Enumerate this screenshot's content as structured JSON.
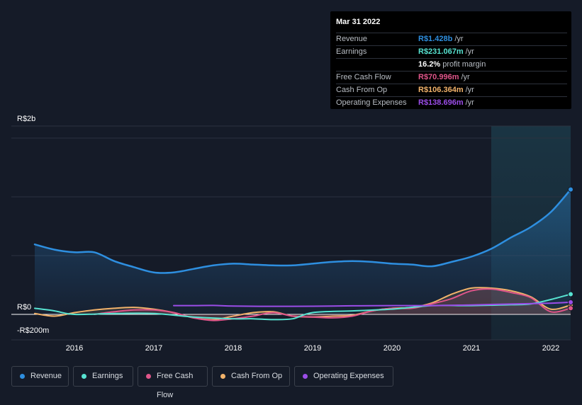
{
  "chart_data": {
    "type": "area",
    "y_axis": {
      "top_label": "R$2b",
      "zero_label": "R$0",
      "bottom_label": "-R$200m",
      "ylim": [
        -200,
        2000
      ]
    },
    "x_ticks": [
      "2016",
      "2017",
      "2018",
      "2019",
      "2020",
      "2021",
      "2022"
    ],
    "xlim": [
      2015.5,
      2022.25
    ],
    "forecast_start": 2021.25,
    "series": [
      {
        "name": "Revenue",
        "color": "#2e8fe0",
        "fill": true,
        "x": [
          2015.5,
          2015.75,
          2016.0,
          2016.25,
          2016.5,
          2016.75,
          2017.0,
          2017.25,
          2017.5,
          2017.75,
          2018.0,
          2018.25,
          2018.5,
          2018.75,
          2019.0,
          2019.25,
          2019.5,
          2019.75,
          2020.0,
          2020.25,
          2020.5,
          2020.75,
          2021.0,
          2021.25,
          2021.5,
          2021.75,
          2022.0,
          2022.25
        ],
        "values": [
          800,
          740,
          710,
          710,
          610,
          540,
          480,
          480,
          520,
          560,
          580,
          570,
          560,
          560,
          580,
          600,
          610,
          600,
          580,
          570,
          550,
          600,
          660,
          750,
          880,
          1000,
          1170,
          1428
        ]
      },
      {
        "name": "Earnings",
        "color": "#57e3d1",
        "x": [
          2015.5,
          2015.75,
          2016.0,
          2016.5,
          2017.0,
          2017.5,
          2018.0,
          2018.25,
          2018.5,
          2018.75,
          2019.0,
          2019.5,
          2020.0,
          2020.5,
          2021.0,
          2021.5,
          2021.75,
          2022.0,
          2022.25
        ],
        "values": [
          70,
          40,
          0,
          10,
          10,
          -30,
          -50,
          -50,
          -60,
          -50,
          20,
          40,
          60,
          100,
          100,
          110,
          120,
          170,
          231.067
        ]
      },
      {
        "name": "Free Cash Flow",
        "color": "#e0558a",
        "x": [
          2016.25,
          2016.5,
          2016.75,
          2017.0,
          2017.25,
          2017.5,
          2017.75,
          2018.0,
          2018.25,
          2018.5,
          2018.75,
          2019.0,
          2019.25,
          2019.5,
          2019.75,
          2020.0,
          2020.25,
          2020.5,
          2020.75,
          2021.0,
          2021.25,
          2021.5,
          2021.75,
          2022.0,
          2022.25
        ],
        "values": [
          0,
          30,
          50,
          50,
          20,
          -40,
          -70,
          -50,
          -20,
          20,
          -20,
          -30,
          -40,
          -20,
          40,
          70,
          70,
          120,
          180,
          270,
          290,
          250,
          190,
          30,
          70.996
        ]
      },
      {
        "name": "Cash From Op",
        "color": "#f2b36b",
        "x": [
          2015.5,
          2015.75,
          2016.0,
          2016.25,
          2016.5,
          2016.75,
          2017.0,
          2017.25,
          2017.5,
          2017.75,
          2018.0,
          2018.25,
          2018.5,
          2018.75,
          2019.0,
          2019.25,
          2019.5,
          2019.75,
          2020.0,
          2020.25,
          2020.5,
          2020.75,
          2021.0,
          2021.25,
          2021.5,
          2021.75,
          2022.0,
          2022.25
        ],
        "values": [
          10,
          -20,
          20,
          50,
          70,
          80,
          60,
          20,
          -40,
          -60,
          -20,
          20,
          30,
          -20,
          -30,
          -20,
          -10,
          40,
          70,
          80,
          130,
          230,
          300,
          300,
          270,
          200,
          60,
          106.364
        ]
      },
      {
        "name": "Operating Expenses",
        "color": "#9b4de8",
        "x": [
          2017.25,
          2017.5,
          2017.75,
          2018.0,
          2018.5,
          2019.0,
          2019.5,
          2020.0,
          2020.5,
          2021.0,
          2021.5,
          2022.0,
          2022.25
        ],
        "values": [
          100,
          100,
          102,
          95,
          92,
          93,
          98,
          100,
          100,
          108,
          118,
          128,
          138.696
        ]
      }
    ]
  },
  "tooltip": {
    "date": "Mar 31 2022",
    "rows": [
      {
        "label": "Revenue",
        "value": "R$1.428b",
        "unit": "/yr",
        "color": "#2e8fe0"
      },
      {
        "label": "Earnings",
        "value": "R$231.067m",
        "unit": "/yr",
        "color": "#57e3d1"
      },
      {
        "label": "",
        "value": "16.2%",
        "unit": "profit margin",
        "color": "#ffffff"
      },
      {
        "label": "Free Cash Flow",
        "value": "R$70.996m",
        "unit": "/yr",
        "color": "#e0558a"
      },
      {
        "label": "Cash From Op",
        "value": "R$106.364m",
        "unit": "/yr",
        "color": "#f2b36b"
      },
      {
        "label": "Operating Expenses",
        "value": "R$138.696m",
        "unit": "/yr",
        "color": "#9b4de8"
      }
    ]
  },
  "legend": [
    {
      "label": "Revenue",
      "color": "#2e8fe0"
    },
    {
      "label": "Earnings",
      "color": "#57e3d1"
    },
    {
      "label": "Free Cash Flow",
      "color": "#e0558a"
    },
    {
      "label": "Cash From Op",
      "color": "#f2b36b"
    },
    {
      "label": "Operating Expenses",
      "color": "#9b4de8"
    }
  ]
}
